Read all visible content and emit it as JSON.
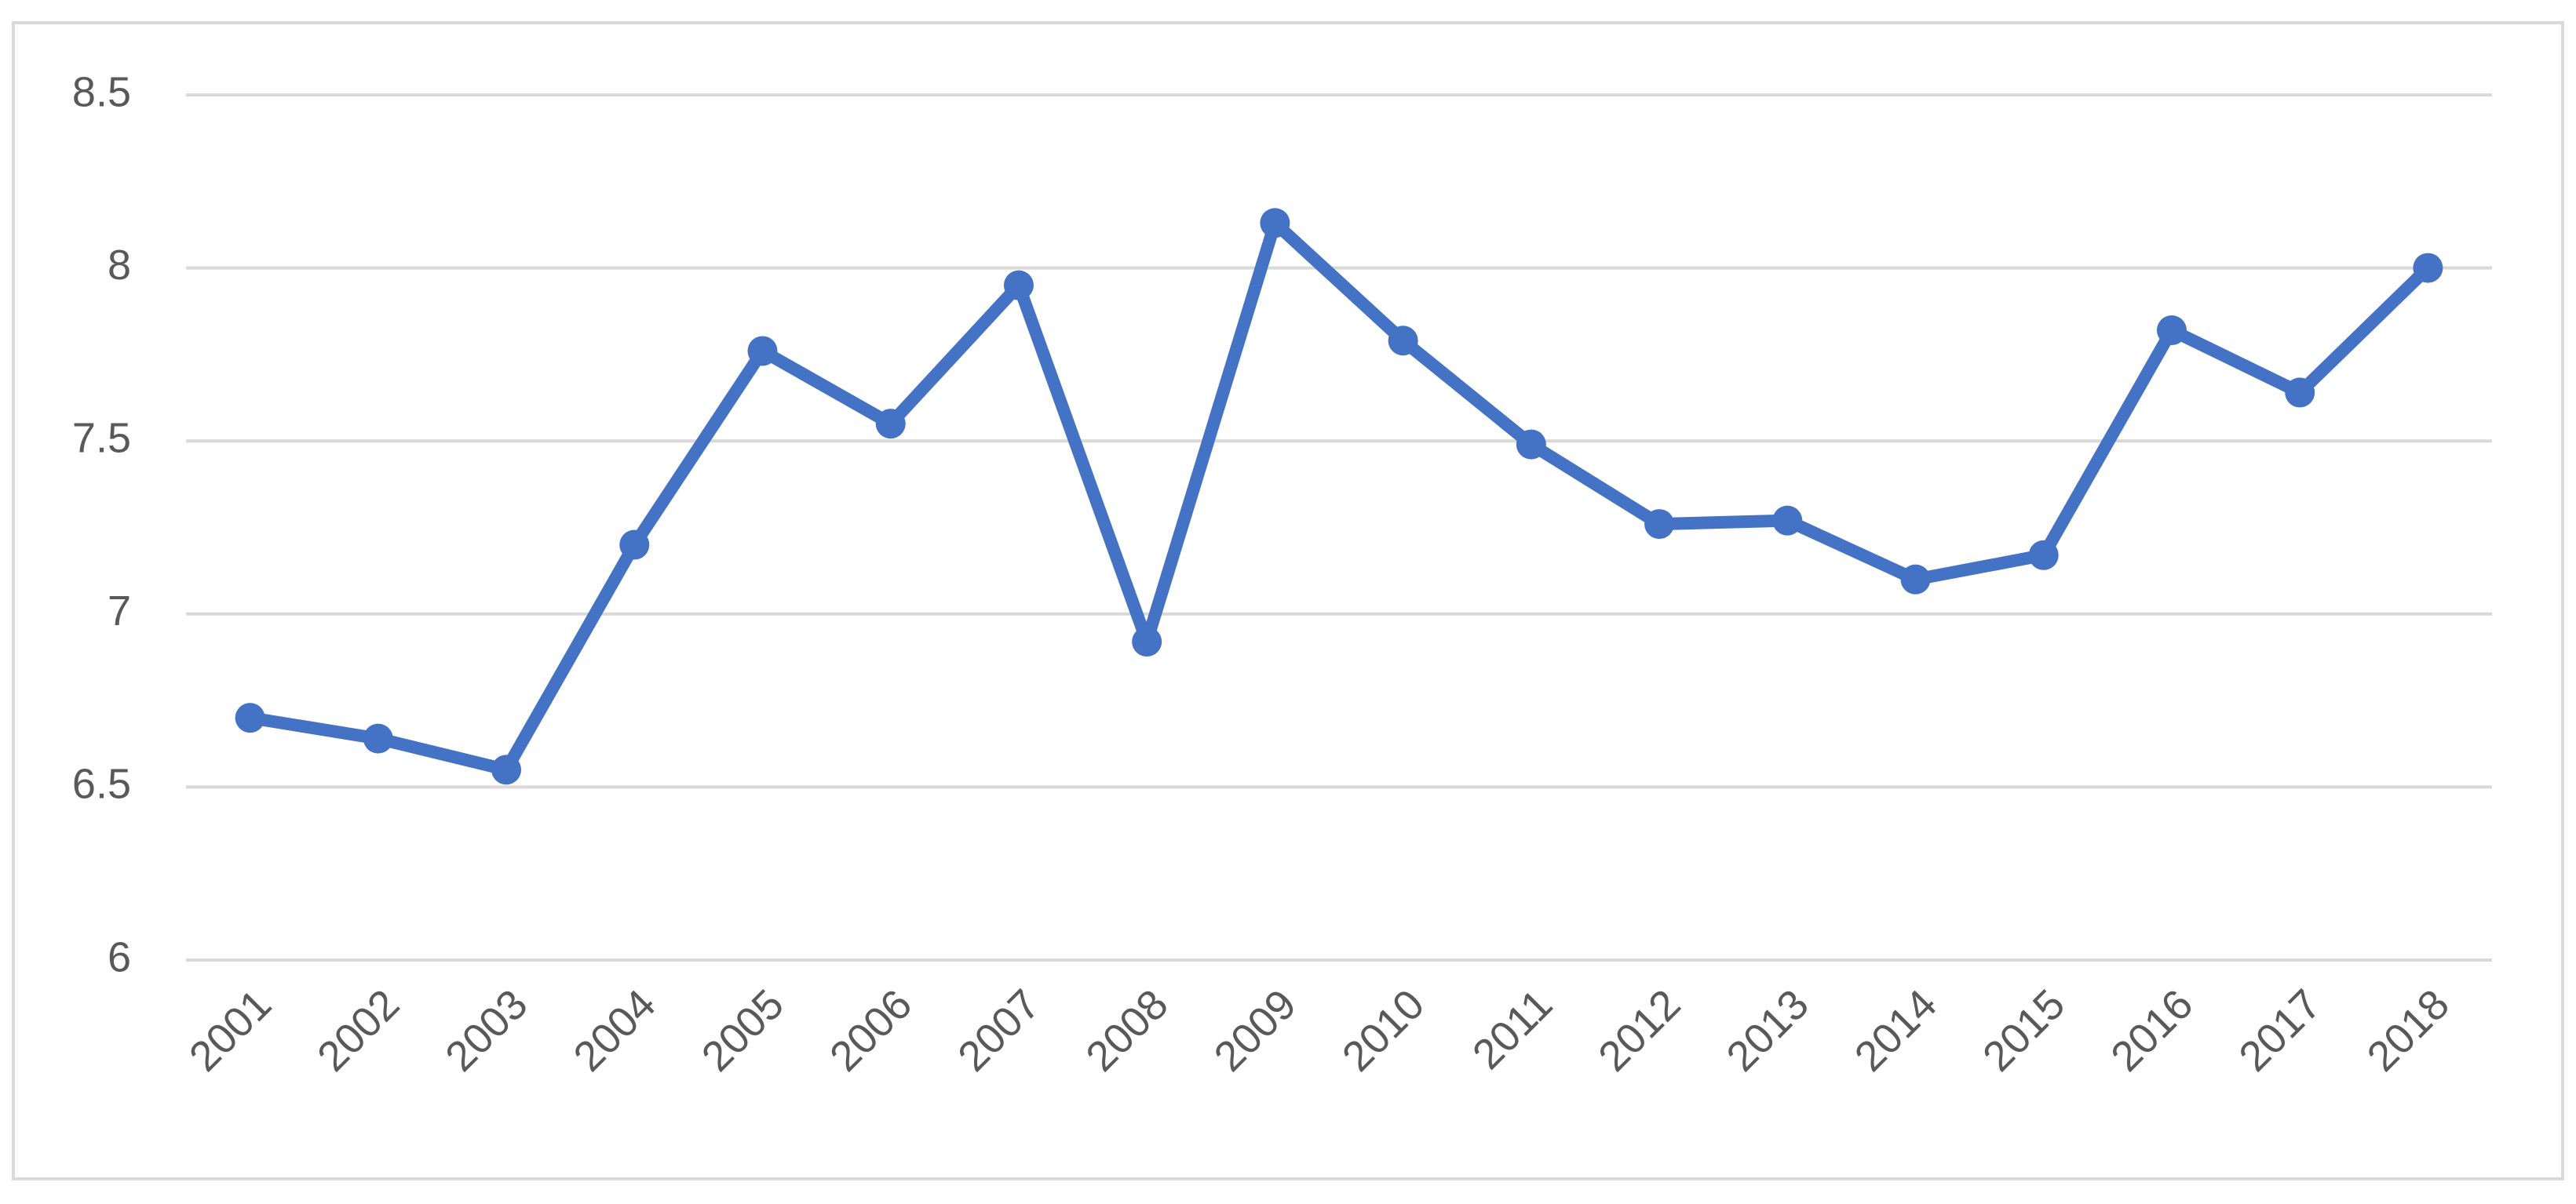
{
  "chart_data": {
    "type": "line",
    "categories": [
      "2001",
      "2002",
      "2003",
      "2004",
      "2005",
      "2006",
      "2007",
      "2008",
      "2009",
      "2010",
      "2011",
      "2012",
      "2013",
      "2014",
      "2015",
      "2016",
      "2017",
      "2018"
    ],
    "values": [
      6.7,
      6.64,
      6.55,
      7.2,
      7.76,
      7.55,
      7.95,
      6.92,
      8.13,
      7.79,
      7.49,
      7.26,
      7.27,
      7.1,
      7.17,
      7.82,
      7.64,
      8.0
    ],
    "color": "#4472c4",
    "ylim": [
      6,
      8.5
    ],
    "yticks": [
      6,
      6.5,
      7,
      7.5,
      8,
      8.5
    ],
    "grid": true
  }
}
